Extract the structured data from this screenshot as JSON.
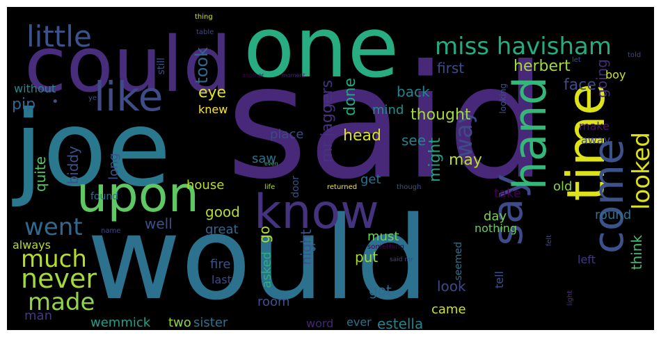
{
  "background_color": "#000000",
  "words": [
    {
      "text": "said",
      "color": "#482878"
    },
    {
      "text": "would",
      "color": "#2c728e"
    },
    {
      "text": "one",
      "color": "#27ad81"
    },
    {
      "text": "joe",
      "color": "#2a788e"
    },
    {
      "text": "could",
      "color": "#472d7b"
    },
    {
      "text": "upon",
      "color": "#5ec962"
    },
    {
      "text": "know",
      "color": "#46337f"
    },
    {
      "text": "time",
      "color": "#dde318"
    },
    {
      "text": "come",
      "color": "#3b528b"
    },
    {
      "text": "say",
      "color": "#3e4a89"
    },
    {
      "text": "hand",
      "color": "#35b779"
    },
    {
      "text": "like",
      "color": "#3e4c8a"
    },
    {
      "text": "little",
      "color": "#3b528b"
    },
    {
      "text": "miss havisham",
      "color": "#25ab82"
    },
    {
      "text": "looked",
      "color": "#dde318"
    },
    {
      "text": "went",
      "color": "#31688e"
    },
    {
      "text": "much",
      "color": "#b5de2b"
    },
    {
      "text": "never",
      "color": "#a2da37"
    },
    {
      "text": "made",
      "color": "#8ed645"
    },
    {
      "text": "way",
      "color": "#3e4a89"
    },
    {
      "text": "took",
      "color": "#31688e"
    },
    {
      "text": "herbert",
      "color": "#a2da37"
    },
    {
      "text": "first",
      "color": "#3e4c8a"
    },
    {
      "text": "face",
      "color": "#3e4c8a"
    },
    {
      "text": "back",
      "color": "#26828e"
    },
    {
      "text": "done",
      "color": "#22a884"
    },
    {
      "text": "going",
      "color": "#472c7a"
    },
    {
      "text": "thought",
      "color": "#a2da37"
    },
    {
      "text": "see",
      "color": "#26828e"
    },
    {
      "text": "head",
      "color": "#dde318"
    },
    {
      "text": "eye",
      "color": "#e5e419"
    },
    {
      "text": "knew",
      "color": "#fde725"
    },
    {
      "text": "pip",
      "color": "#31688e"
    },
    {
      "text": "without",
      "color": "#24878e"
    },
    {
      "text": "mr jaggers",
      "color": "#46327e"
    },
    {
      "text": "mind",
      "color": "#218e8d"
    },
    {
      "text": "may",
      "color": "#bddf26"
    },
    {
      "text": "might",
      "color": "#20a386"
    },
    {
      "text": "saw",
      "color": "#2c728e"
    },
    {
      "text": "quite",
      "color": "#56c667"
    },
    {
      "text": "biddy",
      "color": "#3b528b"
    },
    {
      "text": "place",
      "color": "#3e4989"
    },
    {
      "text": "long",
      "color": "#3b528b"
    },
    {
      "text": "house",
      "color": "#b5de2b"
    },
    {
      "text": "get",
      "color": "#2c728e"
    },
    {
      "text": "make",
      "color": "#481668"
    },
    {
      "text": "away",
      "color": "#3e4989"
    },
    {
      "text": "old",
      "color": "#84d44b"
    },
    {
      "text": "good",
      "color": "#b5de2b"
    },
    {
      "text": "day",
      "color": "#7ad151"
    },
    {
      "text": "take",
      "color": "#440154"
    },
    {
      "text": "round",
      "color": "#2c728e"
    },
    {
      "text": "great",
      "color": "#31688e"
    },
    {
      "text": "well",
      "color": "#3b528b"
    },
    {
      "text": "nothing",
      "color": "#6ccd5a"
    },
    {
      "text": "must",
      "color": "#73d056"
    },
    {
      "text": "go",
      "color": "#b5de2b"
    },
    {
      "text": "night",
      "color": "#3b528b"
    },
    {
      "text": "put",
      "color": "#a2da37"
    },
    {
      "text": "think",
      "color": "#44bf70"
    },
    {
      "text": "always",
      "color": "#b5de2b"
    },
    {
      "text": "man",
      "color": "#443983"
    },
    {
      "text": "fire",
      "color": "#3b528b"
    },
    {
      "text": "last",
      "color": "#3e4a89"
    },
    {
      "text": "asked",
      "color": "#29af7f"
    },
    {
      "text": "got",
      "color": "#31688e"
    },
    {
      "text": "look",
      "color": "#3e4989"
    },
    {
      "text": "seemed",
      "color": "#2c728e"
    },
    {
      "text": "tell",
      "color": "#3b528b"
    },
    {
      "text": "left",
      "color": "#453781"
    },
    {
      "text": "wemmick",
      "color": "#1fa088"
    },
    {
      "text": "two",
      "color": "#8ed645"
    },
    {
      "text": "sister",
      "color": "#2c728e"
    },
    {
      "text": "room",
      "color": "#3b528b"
    },
    {
      "text": "word",
      "color": "#482475"
    },
    {
      "text": "ever",
      "color": "#2c728e"
    },
    {
      "text": "estella",
      "color": "#26828e"
    },
    {
      "text": "came",
      "color": "#d2e21b"
    },
    {
      "text": "boy",
      "color": "#d2e21b"
    },
    {
      "text": "still",
      "color": "#3b528b"
    },
    {
      "text": "looking",
      "color": "#3b528b"
    },
    {
      "text": "door",
      "color": "#3b528b"
    },
    {
      "text": "found",
      "color": "#2c728e"
    },
    {
      "text": "thing",
      "color": "#d2e21b"
    },
    {
      "text": "table",
      "color": "#3e4989"
    },
    {
      "text": "let",
      "color": "#3b528b"
    },
    {
      "text": "told",
      "color": "#3e4989"
    },
    {
      "text": "another",
      "color": "#440154"
    },
    {
      "text": "moment",
      "color": "#482475"
    },
    {
      "text": "ye",
      "color": "#3b528b"
    },
    {
      "text": "even",
      "color": "#35b779"
    },
    {
      "text": "life",
      "color": "#b5de2b"
    },
    {
      "text": "returned",
      "color": "#fde725"
    },
    {
      "text": "though",
      "color": "#3b528b"
    },
    {
      "text": "felt",
      "color": "#3e4989"
    },
    {
      "text": "light",
      "color": "#46327e"
    },
    {
      "text": "something",
      "color": "#440154"
    },
    {
      "text": "said mr",
      "color": "#3e4989"
    },
    {
      "text": "name",
      "color": "#3e4989"
    },
    {
      "text": "s",
      "color": "#31688e"
    },
    {
      "text": "pip-dot",
      "color": "#3e4c8a"
    }
  ]
}
